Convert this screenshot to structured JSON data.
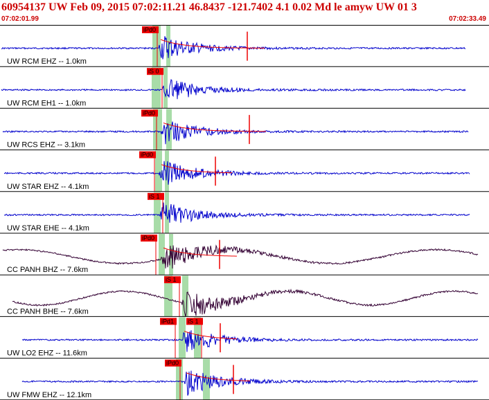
{
  "header": {
    "title": "60954137 UW Feb 09, 2015 07:02:11.21   46.8437 -121.7402  4.1 0.02 Md le amyw UW 01   3",
    "start_time": "07:02:01.99",
    "end_time": "07:02:33.49"
  },
  "colors": {
    "trace_blue": "#0000cc",
    "trace_dark": "#330033",
    "pick_red": "#ee0000",
    "pick_band": "#a8dca8",
    "divider": "#000000",
    "header_bg": "#ffffff"
  },
  "channels": [
    {
      "label": "UW RCM EHZ -- 1.0km",
      "picks": [
        "iPd0"
      ],
      "color": "blue"
    },
    {
      "label": "UW RCM EH1 -- 1.0km",
      "picks": [
        "iS 0"
      ],
      "color": "blue"
    },
    {
      "label": "UW RCS EHZ -- 3.1km",
      "picks": [
        "iPd0"
      ],
      "color": "blue"
    },
    {
      "label": "UW STAR EHZ -- 4.1km",
      "picks": [
        "iPd0"
      ],
      "color": "blue"
    },
    {
      "label": "UW STAR EHE -- 4.1km",
      "picks": [
        "iS 1"
      ],
      "color": "blue"
    },
    {
      "label": "CC PANH BHZ -- 7.6km",
      "picks": [
        "iPd0"
      ],
      "color": "dark"
    },
    {
      "label": "CC PANH BHE -- 7.6km",
      "picks": [
        "iS 1"
      ],
      "color": "dark"
    },
    {
      "label": "UW LO2 EHZ -- 11.6km",
      "picks": [
        "iPd1",
        "iS 1"
      ],
      "color": "blue"
    },
    {
      "label": "UW FMW EHZ -- 12.1km",
      "picks": [
        "iPd0"
      ],
      "color": "blue"
    }
  ]
}
